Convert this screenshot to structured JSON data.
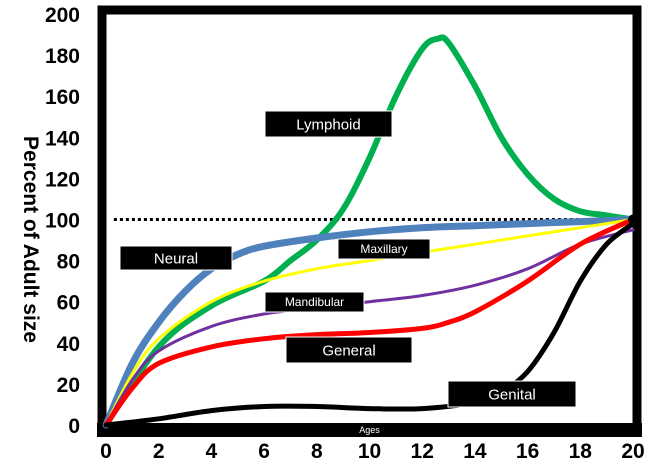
{
  "chart_data": {
    "type": "line",
    "title": "",
    "xlabel": "Ages",
    "ylabel": "Percent of Adult size",
    "xlim": [
      0,
      20
    ],
    "ylim": [
      0,
      200
    ],
    "x_ticks": [
      "0",
      "2",
      "4",
      "6",
      "8",
      "10",
      "12",
      "14",
      "16",
      "18",
      "20"
    ],
    "y_ticks": [
      "0",
      "20",
      "40",
      "60",
      "80",
      "100",
      "120",
      "140",
      "160",
      "180",
      "200"
    ],
    "reference_line": {
      "y": 100,
      "style": "dotted",
      "color": "#000000"
    },
    "series": [
      {
        "name": "Lymphoid",
        "color": "#00b050",
        "points": [
          [
            0,
            0
          ],
          [
            2,
            38
          ],
          [
            4,
            58
          ],
          [
            6,
            70
          ],
          [
            7,
            80
          ],
          [
            8,
            90
          ],
          [
            9,
            105
          ],
          [
            10,
            130
          ],
          [
            11,
            160
          ],
          [
            12,
            183
          ],
          [
            12.6,
            188
          ],
          [
            13,
            186
          ],
          [
            14,
            165
          ],
          [
            15,
            140
          ],
          [
            16,
            122
          ],
          [
            17,
            110
          ],
          [
            18,
            104
          ],
          [
            19,
            102
          ],
          [
            20,
            100
          ]
        ]
      },
      {
        "name": "Neural",
        "color": "#4f81bd",
        "points": [
          [
            0,
            0
          ],
          [
            1,
            30
          ],
          [
            2,
            50
          ],
          [
            3,
            65
          ],
          [
            4,
            76
          ],
          [
            5,
            83
          ],
          [
            6,
            87
          ],
          [
            8,
            91
          ],
          [
            10,
            94
          ],
          [
            12,
            96
          ],
          [
            14,
            97
          ],
          [
            16,
            98
          ],
          [
            18,
            99
          ],
          [
            20,
            100
          ]
        ]
      },
      {
        "name": "Maxillary",
        "color": "#ffff00",
        "points": [
          [
            0,
            0
          ],
          [
            1,
            25
          ],
          [
            2,
            42
          ],
          [
            4,
            60
          ],
          [
            6,
            70
          ],
          [
            8,
            76
          ],
          [
            10,
            80
          ],
          [
            12,
            84
          ],
          [
            14,
            88
          ],
          [
            16,
            92
          ],
          [
            18,
            96
          ],
          [
            20,
            100
          ]
        ]
      },
      {
        "name": "Mandibular",
        "color": "#7030a0",
        "points": [
          [
            0,
            0
          ],
          [
            1,
            22
          ],
          [
            2,
            36
          ],
          [
            4,
            48
          ],
          [
            6,
            54
          ],
          [
            8,
            57
          ],
          [
            10,
            60
          ],
          [
            12,
            63
          ],
          [
            14,
            68
          ],
          [
            16,
            76
          ],
          [
            18,
            88
          ],
          [
            20,
            95
          ]
        ]
      },
      {
        "name": "General",
        "color": "#ff0000",
        "points": [
          [
            0,
            0
          ],
          [
            1,
            18
          ],
          [
            2,
            30
          ],
          [
            4,
            38
          ],
          [
            6,
            42
          ],
          [
            8,
            44
          ],
          [
            10,
            45
          ],
          [
            12,
            47
          ],
          [
            13,
            50
          ],
          [
            14,
            55
          ],
          [
            16,
            70
          ],
          [
            18,
            88
          ],
          [
            20,
            100
          ]
        ]
      },
      {
        "name": "Genital",
        "color": "#000000",
        "points": [
          [
            0,
            0
          ],
          [
            2,
            3
          ],
          [
            4,
            7
          ],
          [
            6,
            9
          ],
          [
            8,
            9
          ],
          [
            10,
            8
          ],
          [
            12,
            8
          ],
          [
            14,
            11
          ],
          [
            15,
            16
          ],
          [
            16,
            26
          ],
          [
            17,
            45
          ],
          [
            18,
            70
          ],
          [
            19,
            88
          ],
          [
            20,
            98
          ]
        ]
      }
    ],
    "labels": [
      {
        "series": "Lymphoid",
        "text": "Lymphoid"
      },
      {
        "series": "Neural",
        "text": "Neural"
      },
      {
        "series": "Maxillary",
        "text": "Maxillary"
      },
      {
        "series": "Mandibular",
        "text": "Mandibular"
      },
      {
        "series": "General",
        "text": "General"
      },
      {
        "series": "Genital",
        "text": "Genital"
      }
    ],
    "legend": "none"
  }
}
